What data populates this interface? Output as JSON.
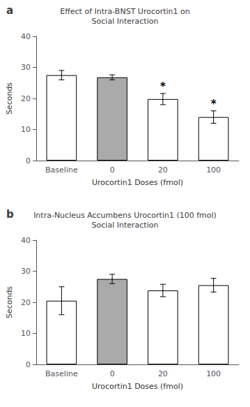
{
  "chart_data": [
    {
      "type": "bar",
      "title": "Effect of Intra-BNST Urocortin1 on\nSocial Interaction",
      "panel_label": "a",
      "categories": [
        "Baseline",
        "0",
        "20",
        "100"
      ],
      "values": [
        27.5,
        26.8,
        19.8,
        14.0
      ],
      "errors": [
        1.5,
        0.8,
        1.8,
        2.0
      ],
      "colors": [
        "#ffffff",
        "#aaaaaa",
        "#ffffff",
        "#ffffff"
      ],
      "xlabel": "Urocortin1 Doses (fmol)",
      "ylabel": "Seconds",
      "ylim": [
        0,
        40
      ],
      "yticks": [
        0,
        10,
        20,
        30,
        40
      ],
      "grid": false,
      "annotations": [
        {
          "x": "20",
          "text": "*"
        },
        {
          "x": "100",
          "text": "*"
        }
      ]
    },
    {
      "type": "bar",
      "title": "Intra-Nucleus Accumbens Urocortin1 (100 fmol)\nSocial Interaction",
      "panel_label": "b",
      "categories": [
        "Baseline",
        "0",
        "20",
        "100"
      ],
      "values": [
        20.5,
        27.5,
        23.8,
        25.5
      ],
      "errors": [
        4.5,
        1.5,
        2.0,
        2.2
      ],
      "colors": [
        "#ffffff",
        "#aaaaaa",
        "#ffffff",
        "#ffffff"
      ],
      "xlabel": "Urocortin1 Doses (fmol)",
      "ylabel": "Seconds",
      "ylim": [
        0,
        40
      ],
      "yticks": [
        0,
        10,
        20,
        30,
        40
      ],
      "grid": false
    }
  ]
}
